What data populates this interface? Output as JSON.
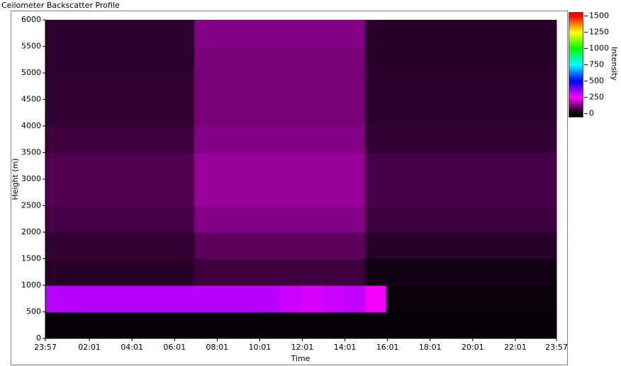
{
  "chart_data": {
    "type": "heatmap",
    "title": "Ceilometer Backscatter Profile",
    "xlabel": "Time",
    "ylabel": "Height (m)",
    "colorbar_label": "Intensity",
    "xlim": [
      0,
      24
    ],
    "xticks": [
      {
        "value": 0,
        "label": "23:57"
      },
      {
        "value": 2.067,
        "label": "02:01"
      },
      {
        "value": 4.067,
        "label": "04:01"
      },
      {
        "value": 6.067,
        "label": "06:01"
      },
      {
        "value": 8.067,
        "label": "08:01"
      },
      {
        "value": 10.067,
        "label": "10:01"
      },
      {
        "value": 12.067,
        "label": "12:01"
      },
      {
        "value": 14.067,
        "label": "14:01"
      },
      {
        "value": 16.067,
        "label": "16:01"
      },
      {
        "value": 18.067,
        "label": "18:01"
      },
      {
        "value": 20.067,
        "label": "20:01"
      },
      {
        "value": 22.067,
        "label": "22:01"
      },
      {
        "value": 24,
        "label": "23:57"
      }
    ],
    "ylim": [
      0,
      6000
    ],
    "yticks": [
      0,
      500,
      1000,
      1500,
      2000,
      2500,
      3000,
      3500,
      4000,
      4500,
      5000,
      5500,
      6000
    ],
    "zlim": [
      -50,
      1550
    ],
    "zticks": [
      0,
      250,
      500,
      750,
      1000,
      1250,
      1500
    ],
    "colors": [
      "#000000",
      "#ff00ff",
      "#0000ff",
      "#00ffff",
      "#00ff00",
      "#ffff00",
      "#ff0000"
    ],
    "xbins": [
      0,
      1,
      2,
      3,
      4,
      5,
      6,
      7,
      8,
      9,
      10,
      11,
      12,
      13,
      14,
      15,
      16,
      17,
      18,
      19,
      20,
      21,
      22,
      23,
      24
    ],
    "ybins": [
      0,
      500,
      1000,
      1500,
      2000,
      2500,
      3000,
      3500,
      4000,
      4500,
      5000,
      5500,
      6000
    ],
    "values": [
      [
        5,
        5,
        5,
        5,
        5,
        5,
        5,
        5,
        5,
        5,
        5,
        5,
        5,
        5,
        5,
        5,
        5,
        5,
        5,
        5,
        5,
        5,
        5,
        5
      ],
      [
        320,
        320,
        320,
        320,
        320,
        320,
        320,
        320,
        320,
        320,
        320,
        300,
        290,
        300,
        310,
        260,
        10,
        10,
        10,
        10,
        10,
        10,
        10,
        10
      ],
      [
        40,
        40,
        40,
        40,
        40,
        40,
        40,
        60,
        60,
        60,
        60,
        60,
        60,
        60,
        60,
        20,
        20,
        20,
        20,
        20,
        20,
        20,
        20,
        20
      ],
      [
        50,
        50,
        50,
        50,
        50,
        50,
        50,
        90,
        90,
        90,
        90,
        90,
        90,
        90,
        90,
        40,
        40,
        40,
        40,
        40,
        40,
        40,
        40,
        40
      ],
      [
        70,
        70,
        70,
        70,
        70,
        70,
        70,
        130,
        130,
        130,
        130,
        130,
        130,
        130,
        130,
        60,
        60,
        60,
        60,
        60,
        60,
        60,
        60,
        60
      ],
      [
        80,
        80,
        80,
        80,
        80,
        80,
        80,
        150,
        150,
        150,
        150,
        150,
        150,
        150,
        150,
        70,
        70,
        70,
        70,
        70,
        70,
        70,
        70,
        70
      ],
      [
        80,
        80,
        80,
        80,
        80,
        80,
        80,
        150,
        150,
        150,
        150,
        150,
        150,
        150,
        150,
        70,
        70,
        70,
        70,
        70,
        70,
        70,
        70,
        70
      ],
      [
        60,
        60,
        60,
        60,
        60,
        60,
        60,
        130,
        130,
        130,
        130,
        130,
        130,
        130,
        130,
        50,
        50,
        50,
        50,
        50,
        50,
        50,
        50,
        50
      ],
      [
        50,
        50,
        50,
        50,
        50,
        50,
        50,
        120,
        120,
        120,
        120,
        120,
        120,
        120,
        120,
        45,
        45,
        45,
        45,
        45,
        45,
        45,
        45,
        45
      ],
      [
        50,
        50,
        50,
        50,
        50,
        50,
        50,
        120,
        120,
        120,
        120,
        120,
        120,
        120,
        120,
        45,
        45,
        45,
        45,
        45,
        45,
        45,
        45,
        45
      ],
      [
        45,
        45,
        45,
        45,
        45,
        45,
        45,
        120,
        120,
        120,
        120,
        120,
        120,
        120,
        120,
        40,
        40,
        40,
        40,
        40,
        40,
        40,
        40,
        40
      ],
      [
        45,
        45,
        45,
        45,
        45,
        45,
        45,
        130,
        130,
        130,
        130,
        130,
        130,
        130,
        130,
        40,
        40,
        40,
        40,
        40,
        40,
        40,
        40,
        40
      ]
    ]
  }
}
